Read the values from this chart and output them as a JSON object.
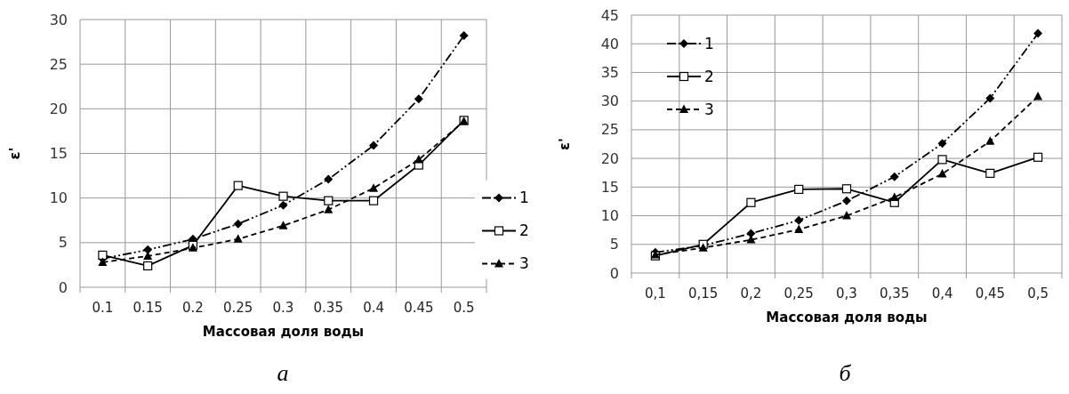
{
  "chart_data": [
    {
      "type": "line",
      "xlabel": "Массовая доля воды",
      "ylabel": "ε'",
      "categories": [
        "0.1",
        "0.15",
        "0.2",
        "0.25",
        "0.3",
        "0.35",
        "0.4",
        "0.45",
        "0.5"
      ],
      "ylim": [
        0,
        30
      ],
      "yticks": [
        0,
        5,
        10,
        15,
        20,
        25,
        30
      ],
      "grid": true,
      "legend": "right",
      "annotations": [
        "а"
      ],
      "series": [
        {
          "name": "1",
          "color": "#000000",
          "marker": "diamond",
          "line_style": "dashdot",
          "values": [
            3.2,
            4.2,
            5.4,
            7.1,
            9.2,
            12.1,
            15.9,
            21.1,
            28.2
          ]
        },
        {
          "name": "2",
          "color": "#000000",
          "marker": "square",
          "line_style": "solid",
          "values": [
            3.6,
            2.4,
            4.7,
            11.4,
            10.2,
            9.7,
            9.7,
            13.7,
            18.7
          ]
        },
        {
          "name": "3",
          "color": "#000000",
          "marker": "triangle",
          "line_style": "dashed",
          "values": [
            2.8,
            3.5,
            4.4,
            5.4,
            6.9,
            8.7,
            11.1,
            14.3,
            18.6
          ]
        }
      ]
    },
    {
      "type": "line",
      "xlabel": "Массовая доля воды",
      "ylabel": "ε'",
      "categories": [
        "0,1",
        "0,15",
        "0,2",
        "0,25",
        "0,3",
        "0,35",
        "0,4",
        "0,45",
        "0,5"
      ],
      "ylim": [
        0,
        45
      ],
      "yticks": [
        0,
        5,
        10,
        15,
        20,
        25,
        30,
        35,
        40,
        45
      ],
      "grid": true,
      "legend": "top left",
      "annotations": [
        "б"
      ],
      "series": [
        {
          "name": "1",
          "color": "#000000",
          "marker": "diamond",
          "line_style": "dashdot",
          "values": [
            3.6,
            4.8,
            6.9,
            9.2,
            12.6,
            16.8,
            22.6,
            30.5,
            41.8
          ]
        },
        {
          "name": "2",
          "color": "#000000",
          "marker": "square",
          "line_style": "solid",
          "values": [
            3.0,
            5.0,
            12.3,
            14.6,
            14.7,
            12.3,
            19.8,
            17.4,
            20.2
          ]
        },
        {
          "name": "3",
          "color": "#000000",
          "marker": "triangle",
          "line_style": "dashed",
          "values": [
            3.2,
            4.4,
            5.8,
            7.6,
            10.0,
            13.2,
            17.3,
            23.0,
            30.8
          ]
        }
      ]
    }
  ]
}
